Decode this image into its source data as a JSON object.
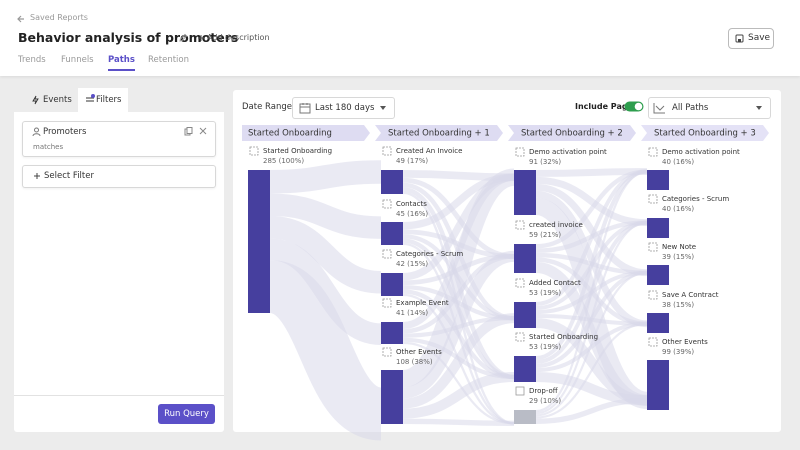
{
  "breadcrumb": "Saved Reports",
  "header": {
    "title": "Behavior analysis of promoters",
    "add_description": "Add description",
    "save": "Save"
  },
  "tabs": [
    "Trends",
    "Funnels",
    "Paths",
    "Retention"
  ],
  "sidebar": {
    "tabs": [
      "Events",
      "Filters"
    ],
    "filter": {
      "name": "Promoters",
      "operator": "matches"
    },
    "select_filter": "Select Filter",
    "run_query": "Run Query"
  },
  "controls": {
    "date_range_label": "Date Range",
    "date_range": "Last 180 days",
    "include_pages": "Include Pages",
    "paths": "All Paths"
  },
  "columns": [
    {
      "header": "Started Onboarding",
      "nodes": [
        {
          "label": "Started Onboarding",
          "count": "285 (100%)"
        }
      ]
    },
    {
      "header": "Started Onboarding + 1",
      "nodes": [
        {
          "label": "Created An Invoice",
          "count": "49 (17%)"
        },
        {
          "label": "Contacts",
          "count": "45 (16%)"
        },
        {
          "label": "Categories - Scrum",
          "count": "42 (15%)"
        },
        {
          "label": "Example Event",
          "count": "41 (14%)"
        },
        {
          "label": "Other Events",
          "count": "108 (38%)"
        }
      ]
    },
    {
      "header": "Started Onboarding + 2",
      "nodes": [
        {
          "label": "Demo activation point",
          "count": "91 (32%)"
        },
        {
          "label": "created invoice",
          "count": "59 (21%)"
        },
        {
          "label": "Added Contact",
          "count": "53 (19%)"
        },
        {
          "label": "Started Onboarding",
          "count": "53 (19%)"
        },
        {
          "label": "Drop-off",
          "count": "29 (10%)"
        }
      ]
    },
    {
      "header": "Started Onboarding + 3",
      "nodes": [
        {
          "label": "Demo activation point",
          "count": "40 (16%)"
        },
        {
          "label": "Categories - Scrum",
          "count": "40 (16%)"
        },
        {
          "label": "New Note",
          "count": "39 (15%)"
        },
        {
          "label": "Save A Contract",
          "count": "38 (15%)"
        },
        {
          "label": "Other Events",
          "count": "99 (39%)"
        }
      ]
    }
  ]
}
